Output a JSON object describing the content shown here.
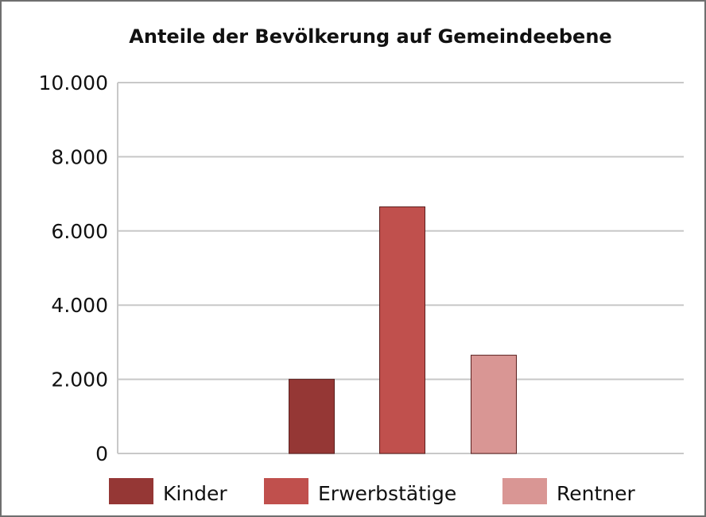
{
  "chart_data": {
    "type": "bar",
    "title": "Anteile der Bevölkerung auf Gemeindeebene",
    "xlabel": "",
    "ylabel": "",
    "ylim": [
      0,
      10000
    ],
    "yticks": [
      {
        "value": 0,
        "label": "0"
      },
      {
        "value": 2000,
        "label": "2.000"
      },
      {
        "value": 4000,
        "label": "4.000"
      },
      {
        "value": 6000,
        "label": "6.000"
      },
      {
        "value": 8000,
        "label": "8.000"
      },
      {
        "value": 10000,
        "label": "10.000"
      }
    ],
    "grid": true,
    "legend_position": "bottom",
    "series": [
      {
        "name": "Kinder",
        "value": 2000,
        "color": "#953735"
      },
      {
        "name": "Erwerbstätige",
        "value": 6650,
        "color": "#c0504d"
      },
      {
        "name": "Rentner",
        "value": 2650,
        "color": "#d99694"
      }
    ]
  }
}
